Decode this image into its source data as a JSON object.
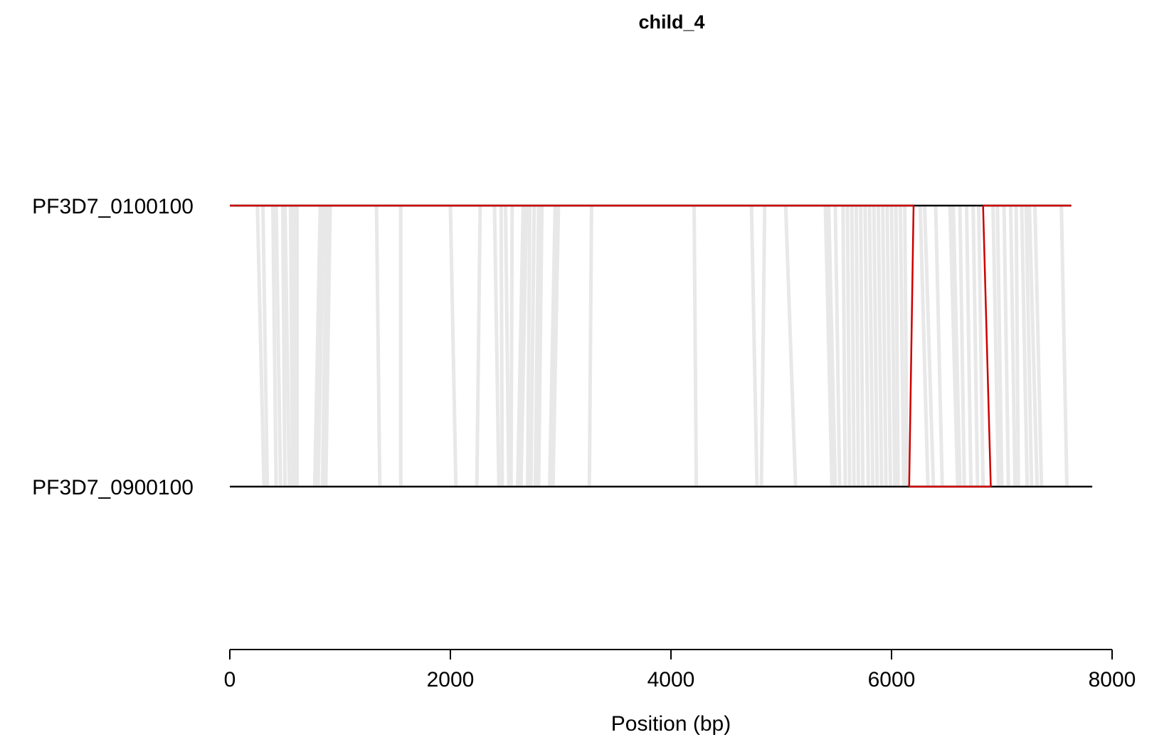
{
  "chart_data": {
    "type": "alignment",
    "title": "child_4",
    "xlabel": "Position (bp)",
    "xlim": [
      0,
      8000
    ],
    "x_ticks": [
      0,
      2000,
      4000,
      6000,
      8000
    ],
    "x_tick_labels": [
      "0",
      "2000",
      "4000",
      "6000",
      "8000"
    ],
    "sequences": [
      {
        "name": "PF3D7_0100100",
        "length": 7630
      },
      {
        "name": "PF3D7_0900100",
        "length": 7820
      }
    ],
    "highlight_color": "#cc0000",
    "link_color": "#e8e8e8",
    "sequence_color": "#000000",
    "highlighted_segments": [
      {
        "sequence": "PF3D7_0100100",
        "start": 0,
        "end": 6200
      },
      {
        "sequence": "PF3D7_0100100",
        "start": 6830,
        "end": 7630
      },
      {
        "sequence": "PF3D7_0900100",
        "start": 6160,
        "end": 6900
      }
    ],
    "highlighted_links": [
      {
        "top": 6200,
        "bottom": 6160
      },
      {
        "top": 6830,
        "bottom": 6900
      }
    ],
    "links": [
      {
        "top": 250,
        "bottom": 310
      },
      {
        "top": 300,
        "bottom": 340
      },
      {
        "top": 390,
        "bottom": 420
      },
      {
        "top": 420,
        "bottom": 460
      },
      {
        "top": 480,
        "bottom": 500
      },
      {
        "top": 500,
        "bottom": 540
      },
      {
        "top": 550,
        "bottom": 570
      },
      {
        "top": 580,
        "bottom": 590
      },
      {
        "top": 610,
        "bottom": 610
      },
      {
        "top": 820,
        "bottom": 770
      },
      {
        "top": 850,
        "bottom": 800
      },
      {
        "top": 880,
        "bottom": 840
      },
      {
        "top": 910,
        "bottom": 870
      },
      {
        "top": 1330,
        "bottom": 1360
      },
      {
        "top": 1550,
        "bottom": 1550
      },
      {
        "top": 2000,
        "bottom": 2050
      },
      {
        "top": 2270,
        "bottom": 2240
      },
      {
        "top": 2400,
        "bottom": 2440
      },
      {
        "top": 2460,
        "bottom": 2470
      },
      {
        "top": 2500,
        "bottom": 2530
      },
      {
        "top": 2560,
        "bottom": 2550
      },
      {
        "top": 2660,
        "bottom": 2610
      },
      {
        "top": 2690,
        "bottom": 2640
      },
      {
        "top": 2720,
        "bottom": 2700
      },
      {
        "top": 2760,
        "bottom": 2730
      },
      {
        "top": 2800,
        "bottom": 2770
      },
      {
        "top": 2830,
        "bottom": 2800
      },
      {
        "top": 2950,
        "bottom": 2900
      },
      {
        "top": 2980,
        "bottom": 2930
      },
      {
        "top": 3280,
        "bottom": 3260
      },
      {
        "top": 4210,
        "bottom": 4230
      },
      {
        "top": 4730,
        "bottom": 4780
      },
      {
        "top": 4850,
        "bottom": 4820
      },
      {
        "top": 5040,
        "bottom": 5130
      },
      {
        "top": 5400,
        "bottom": 5460
      },
      {
        "top": 5430,
        "bottom": 5490
      },
      {
        "top": 5490,
        "bottom": 5530
      },
      {
        "top": 5560,
        "bottom": 5580
      },
      {
        "top": 5600,
        "bottom": 5620
      },
      {
        "top": 5640,
        "bottom": 5660
      },
      {
        "top": 5680,
        "bottom": 5700
      },
      {
        "top": 5720,
        "bottom": 5740
      },
      {
        "top": 5760,
        "bottom": 5790
      },
      {
        "top": 5800,
        "bottom": 5830
      },
      {
        "top": 5840,
        "bottom": 5870
      },
      {
        "top": 5880,
        "bottom": 5910
      },
      {
        "top": 5920,
        "bottom": 5950
      },
      {
        "top": 5960,
        "bottom": 5990
      },
      {
        "top": 6000,
        "bottom": 6030
      },
      {
        "top": 6040,
        "bottom": 6060
      },
      {
        "top": 6080,
        "bottom": 6110
      },
      {
        "top": 6120,
        "bottom": 6140
      },
      {
        "top": 6260,
        "bottom": 6330
      },
      {
        "top": 6300,
        "bottom": 6380
      },
      {
        "top": 6400,
        "bottom": 6460
      },
      {
        "top": 6530,
        "bottom": 6600
      },
      {
        "top": 6560,
        "bottom": 6620
      },
      {
        "top": 6620,
        "bottom": 6660
      },
      {
        "top": 6680,
        "bottom": 6720
      },
      {
        "top": 6740,
        "bottom": 6780
      },
      {
        "top": 6790,
        "bottom": 6830
      },
      {
        "top": 6920,
        "bottom": 6970
      },
      {
        "top": 6960,
        "bottom": 7000
      },
      {
        "top": 7020,
        "bottom": 7060
      },
      {
        "top": 7080,
        "bottom": 7120
      },
      {
        "top": 7130,
        "bottom": 7150
      },
      {
        "top": 7180,
        "bottom": 7230
      },
      {
        "top": 7220,
        "bottom": 7270
      },
      {
        "top": 7250,
        "bottom": 7320
      },
      {
        "top": 7300,
        "bottom": 7360
      },
      {
        "top": 7540,
        "bottom": 7590
      }
    ]
  }
}
